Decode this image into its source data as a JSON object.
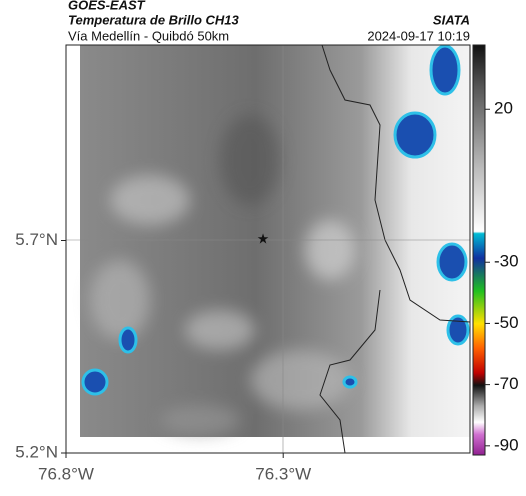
{
  "header": {
    "title": "GOES-EAST",
    "subtitle": "Temperatura de Brillo CH13",
    "route": "Vía Medellín - Quibdó 50km",
    "source": "SIATA",
    "datetime": "2024-09-17 10:19"
  },
  "map": {
    "xlim": [
      -76.8,
      -75.87
    ],
    "ylim": [
      5.2,
      6.16
    ],
    "xticks": [
      {
        "value": -76.8,
        "label": "76.8°W"
      },
      {
        "value": -76.3,
        "label": "76.3°W"
      }
    ],
    "yticks": [
      {
        "value": 5.7,
        "label": "5.7°N"
      },
      {
        "value": 5.2,
        "label": "5.2°N"
      }
    ]
  },
  "colorbar": {
    "lim": [
      -93,
      41
    ],
    "ticks": [
      20,
      -30,
      -50,
      -70,
      -90
    ]
  }
}
